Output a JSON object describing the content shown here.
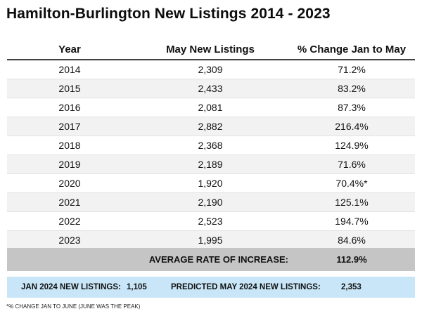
{
  "title": "Hamilton-Burlington New Listings 2014 - 2023",
  "table": {
    "headers": [
      "Year",
      "May New Listings",
      "% Change Jan to May"
    ],
    "rows": [
      [
        "2014",
        "2,309",
        "71.2%"
      ],
      [
        "2015",
        "2,433",
        "83.2%"
      ],
      [
        "2016",
        "2,081",
        "87.3%"
      ],
      [
        "2017",
        "2,882",
        "216.4%"
      ],
      [
        "2018",
        "2,368",
        "124.9%"
      ],
      [
        "2019",
        "2,189",
        "71.6%"
      ],
      [
        "2020",
        "1,920",
        "70.4%*"
      ],
      [
        "2021",
        "2,190",
        "125.1%"
      ],
      [
        "2022",
        "2,523",
        "194.7%"
      ],
      [
        "2023",
        "1,995",
        "84.6%"
      ]
    ]
  },
  "average": {
    "label": "AVERAGE RATE OF INCREASE:",
    "value": "112.9%"
  },
  "prediction": {
    "jan_label": "JAN 2024 NEW LISTINGS:",
    "jan_value": "1,105",
    "may_label": "PREDICTED MAY 2024 NEW LISTINGS:",
    "may_value": "2,353"
  },
  "footnote": "*% CHANGE JAN TO JUNE (JUNE WAS THE PEAK)",
  "colors": {
    "average_band": "#c5c5c5",
    "prediction_band": "#c8e6f7",
    "alt_row": "#f2f2f2"
  }
}
